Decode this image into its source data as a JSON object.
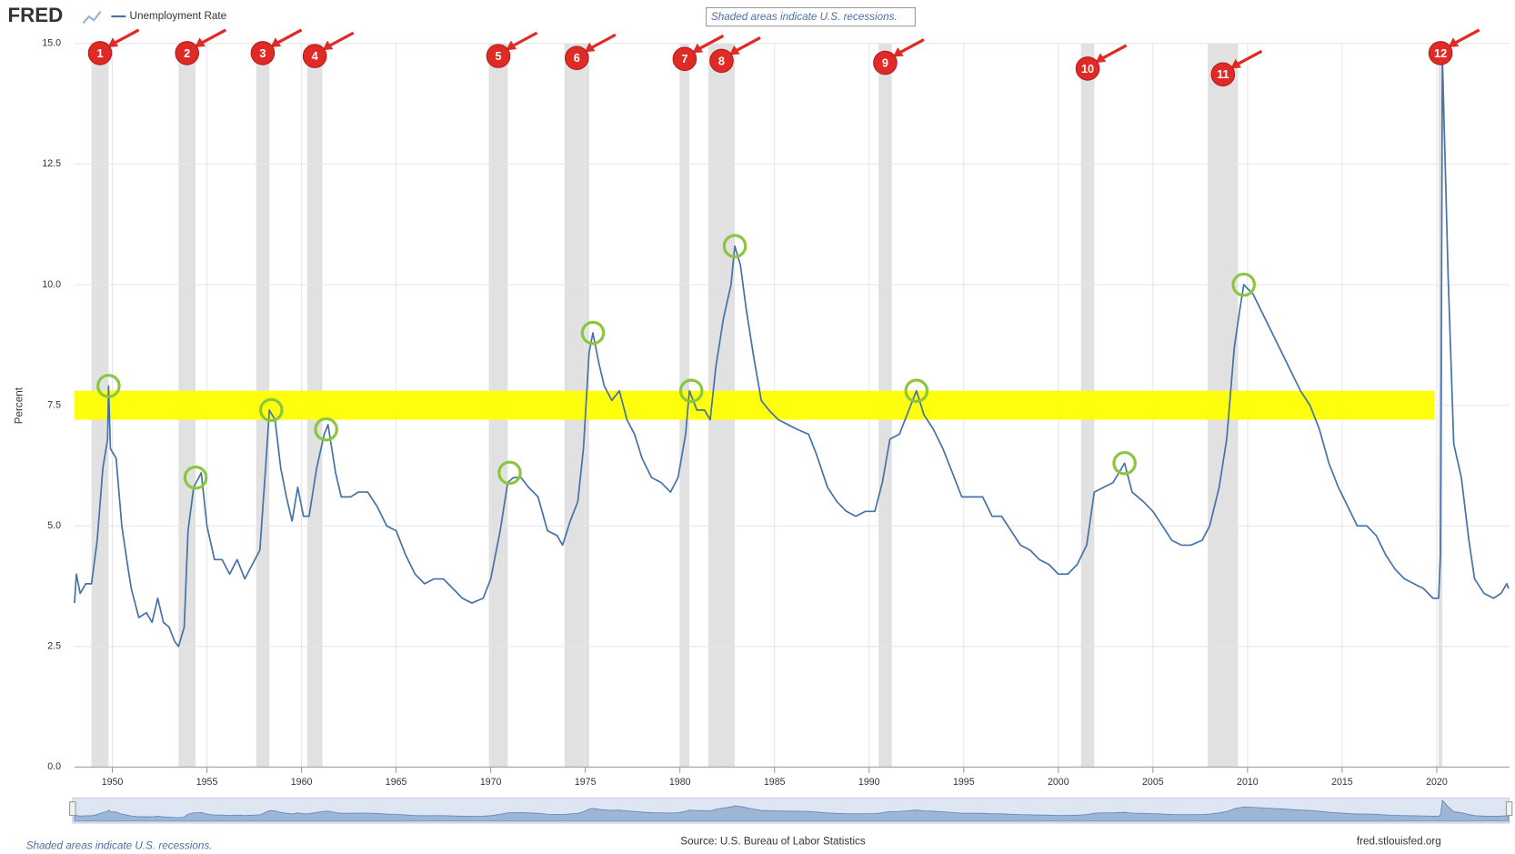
{
  "chart_data": {
    "type": "line",
    "logo": "FRED",
    "title": "Unemployment Rate",
    "y_label": "Percent",
    "recession_note": "Shaded areas indicate U.S. recessions.",
    "source": "Source: U.S. Bureau of Labor Statistics",
    "site": "fred.stlouisfed.org",
    "xlim": [
      1948,
      2023.83
    ],
    "ylim": [
      0,
      15
    ],
    "xticks": [
      1950,
      1955,
      1960,
      1965,
      1970,
      1975,
      1980,
      1985,
      1990,
      1995,
      2000,
      2005,
      2010,
      2015,
      2020
    ],
    "yticks": [
      {
        "value": 0,
        "label": "0.0"
      },
      2.5,
      {
        "value": 5,
        "label": "5.0"
      },
      7.5,
      {
        "value": 10,
        "label": "10.0"
      },
      12.5,
      {
        "value": 15,
        "label": "15.0"
      }
    ],
    "grid": true,
    "x": [
      1948.0,
      1948.1,
      1948.3,
      1948.6,
      1948.9,
      1949.2,
      1949.5,
      1949.75,
      1949.8,
      1949.9,
      1950.2,
      1950.5,
      1950.8,
      1951.0,
      1951.4,
      1951.8,
      1952.1,
      1952.4,
      1952.7,
      1953.0,
      1953.3,
      1953.5,
      1953.8,
      1954.0,
      1954.3,
      1954.7,
      1955.0,
      1955.4,
      1955.8,
      1956.2,
      1956.6,
      1957.0,
      1957.4,
      1957.8,
      1958.1,
      1958.3,
      1958.6,
      1958.9,
      1959.2,
      1959.5,
      1959.8,
      1960.1,
      1960.4,
      1960.8,
      1961.2,
      1961.4,
      1961.8,
      1962.1,
      1962.6,
      1963.0,
      1963.5,
      1964.0,
      1964.5,
      1965.0,
      1965.5,
      1966.0,
      1966.5,
      1967.0,
      1967.5,
      1968.0,
      1968.5,
      1969.0,
      1969.6,
      1970.0,
      1970.5,
      1970.9,
      1971.2,
      1971.6,
      1972.0,
      1972.5,
      1973.0,
      1973.5,
      1973.8,
      1974.2,
      1974.6,
      1974.9,
      1975.2,
      1975.4,
      1975.7,
      1976.0,
      1976.4,
      1976.8,
      1977.2,
      1977.6,
      1978.0,
      1978.5,
      1979.0,
      1979.5,
      1979.9,
      1980.3,
      1980.5,
      1980.9,
      1981.3,
      1981.6,
      1981.9,
      1982.3,
      1982.7,
      1982.9,
      1983.2,
      1983.5,
      1983.9,
      1984.3,
      1984.7,
      1985.2,
      1985.7,
      1986.2,
      1986.8,
      1987.2,
      1987.8,
      1988.3,
      1988.8,
      1989.3,
      1989.8,
      1990.3,
      1990.7,
      1991.1,
      1991.6,
      1992.0,
      1992.5,
      1992.9,
      1993.4,
      1993.9,
      1994.4,
      1994.9,
      1995.4,
      1996.0,
      1996.5,
      1997.0,
      1997.5,
      1998.0,
      1998.5,
      1999.0,
      1999.5,
      2000.0,
      2000.5,
      2001.0,
      2001.5,
      2001.9,
      2002.4,
      2002.9,
      2003.5,
      2003.9,
      2004.5,
      2005.0,
      2005.5,
      2006.0,
      2006.5,
      2007.0,
      2007.6,
      2008.0,
      2008.5,
      2008.9,
      2009.3,
      2009.6,
      2009.8,
      2010.3,
      2010.8,
      2011.3,
      2011.8,
      2012.3,
      2012.8,
      2013.3,
      2013.8,
      2014.3,
      2014.8,
      2015.3,
      2015.8,
      2016.3,
      2016.8,
      2017.3,
      2017.8,
      2018.3,
      2018.8,
      2019.3,
      2019.8,
      2020.1,
      2020.2,
      2020.3,
      2020.4,
      2020.6,
      2020.9,
      2021.3,
      2021.7,
      2022.0,
      2022.5,
      2023.0,
      2023.4,
      2023.7,
      2023.8
    ],
    "series": [
      {
        "name": "Unemployment Rate",
        "color": "#4572a7",
        "values": [
          3.4,
          4.0,
          3.6,
          3.8,
          3.8,
          4.7,
          6.2,
          6.8,
          7.9,
          6.6,
          6.4,
          5.0,
          4.2,
          3.7,
          3.1,
          3.2,
          3.0,
          3.5,
          3.0,
          2.9,
          2.6,
          2.5,
          2.9,
          4.9,
          5.8,
          6.1,
          5.0,
          4.3,
          4.3,
          4.0,
          4.3,
          3.9,
          4.2,
          4.5,
          6.2,
          7.4,
          7.2,
          6.2,
          5.6,
          5.1,
          5.8,
          5.2,
          5.2,
          6.2,
          6.9,
          7.1,
          6.1,
          5.6,
          5.6,
          5.7,
          5.7,
          5.4,
          5.0,
          4.9,
          4.4,
          4.0,
          3.8,
          3.9,
          3.9,
          3.7,
          3.5,
          3.4,
          3.5,
          3.9,
          4.9,
          5.9,
          6.0,
          6.0,
          5.8,
          5.6,
          4.9,
          4.8,
          4.6,
          5.1,
          5.5,
          6.6,
          8.6,
          9.0,
          8.4,
          7.9,
          7.6,
          7.8,
          7.2,
          6.9,
          6.4,
          6.0,
          5.9,
          5.7,
          6.0,
          6.9,
          7.8,
          7.4,
          7.4,
          7.2,
          8.3,
          9.3,
          10.0,
          10.8,
          10.4,
          9.5,
          8.5,
          7.6,
          7.4,
          7.2,
          7.1,
          7.0,
          6.9,
          6.5,
          5.8,
          5.5,
          5.3,
          5.2,
          5.3,
          5.3,
          5.9,
          6.8,
          6.9,
          7.3,
          7.8,
          7.3,
          7.0,
          6.6,
          6.1,
          5.6,
          5.6,
          5.6,
          5.2,
          5.2,
          4.9,
          4.6,
          4.5,
          4.3,
          4.2,
          4.0,
          4.0,
          4.2,
          4.6,
          5.7,
          5.8,
          5.9,
          6.3,
          5.7,
          5.5,
          5.3,
          5.0,
          4.7,
          4.6,
          4.6,
          4.7,
          5.0,
          5.8,
          6.8,
          8.7,
          9.5,
          10.0,
          9.8,
          9.4,
          9.0,
          8.6,
          8.2,
          7.8,
          7.5,
          7.0,
          6.3,
          5.8,
          5.4,
          5.0,
          5.0,
          4.8,
          4.4,
          4.1,
          3.9,
          3.8,
          3.7,
          3.5,
          3.5,
          4.4,
          14.7,
          13.2,
          10.2,
          6.7,
          6.0,
          4.7,
          3.9,
          3.6,
          3.5,
          3.6,
          3.8,
          3.7
        ]
      }
    ],
    "recessions": {
      "color": "#e1e1e1",
      "start": [
        1948.9,
        1953.5,
        1957.6,
        1960.3,
        1969.9,
        1973.9,
        1980.0,
        1981.5,
        1990.5,
        2001.2,
        2007.9,
        2020.1
      ],
      "end": [
        1949.8,
        1954.4,
        1958.3,
        1961.1,
        1970.9,
        1975.2,
        1980.5,
        1982.9,
        1991.2,
        2001.9,
        2009.5,
        2020.3
      ]
    },
    "recession_labels": [
      "1",
      "2",
      "3",
      "4",
      "5",
      "6",
      "7",
      "8",
      "9",
      "10",
      "11",
      "12"
    ],
    "marker_color": "#e02a26",
    "highlight_band": {
      "color": "#ffff00",
      "y": [
        7.2,
        7.8
      ],
      "x": [
        1948,
        2019.9
      ]
    },
    "peaks": {
      "color": "#8cc63f",
      "x": [
        1949.8,
        1954.4,
        1958.4,
        1961.3,
        1971.0,
        1975.4,
        1980.6,
        1982.9,
        1992.5,
        2003.5,
        2009.8
      ],
      "y": [
        7.9,
        6.0,
        7.4,
        7.0,
        6.1,
        9.0,
        7.8,
        10.8,
        7.8,
        6.3,
        10.0
      ]
    }
  }
}
